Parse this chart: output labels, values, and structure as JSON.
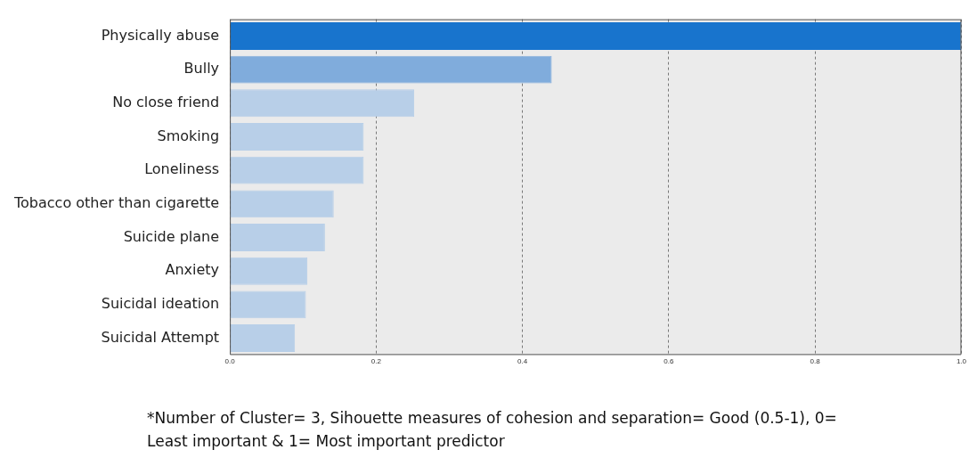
{
  "chart_data": {
    "type": "bar",
    "orientation": "horizontal",
    "categories": [
      "Physically abuse",
      "Bully",
      "No close friend",
      "Smoking",
      "Loneliness",
      "Tobacco other than cigarette",
      "Suicide plane",
      "Anxiety",
      "Suicidal ideation",
      "Suicidal Attempt"
    ],
    "values": [
      1.0,
      0.44,
      0.252,
      0.183,
      0.183,
      0.142,
      0.13,
      0.106,
      0.104,
      0.089
    ],
    "colors": [
      "#1874cd",
      "#80acdc",
      "#b8cfe8",
      "#b8cfe8",
      "#b8cfe8",
      "#b8cfe8",
      "#b8cfe8",
      "#b8cfe8",
      "#b8cfe8",
      "#b8cfe8"
    ],
    "xlim": [
      0,
      1
    ],
    "xticks": [
      {
        "value": 0,
        "label": "0.0"
      },
      {
        "value": 0.2,
        "label": "0.2"
      },
      {
        "value": 0.4,
        "label": "0.4"
      },
      {
        "value": 0.6,
        "label": "0.6"
      },
      {
        "value": 0.8,
        "label": "0.8"
      },
      {
        "value": 1,
        "label": "1.0"
      }
    ],
    "grid": "x",
    "annotations": [
      "*Number of Cluster= 3, Sihouette measures of cohesion and separation= Good (0.5-1), 0= Least important & 1= Most important predictor"
    ]
  }
}
